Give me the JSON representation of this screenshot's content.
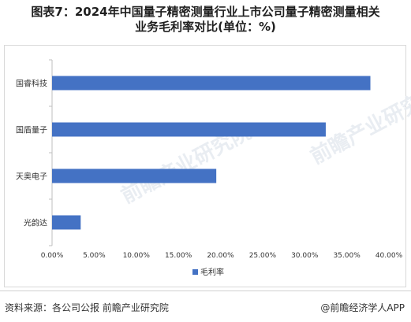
{
  "title": {
    "line1": "图表7：2024年中国量子精密测量行业上市公司量子精密测量相关",
    "line2": "业务毛利率对比(单位：%)"
  },
  "chart_data": {
    "type": "bar",
    "orientation": "horizontal",
    "categories": [
      "国睿科技",
      "国盾量子",
      "天奥电子",
      "光韵达"
    ],
    "series": [
      {
        "name": "毛利率",
        "values": [
          37.8,
          32.5,
          19.5,
          3.4
        ]
      }
    ],
    "xlim": [
      0,
      40
    ],
    "xticks": [
      "0.00%",
      "5.00%",
      "10.00%",
      "15.00%",
      "20.00%",
      "25.00%",
      "30.00%",
      "35.00%",
      "40.00%"
    ],
    "bar_color": "#4472c4",
    "legend_position": "bottom",
    "grid": false
  },
  "watermark": "前瞻产业研究院",
  "footer": {
    "source": "资料来源：各公司公报 前瞻产业研究院",
    "brand": "@前瞻经济学人APP"
  }
}
